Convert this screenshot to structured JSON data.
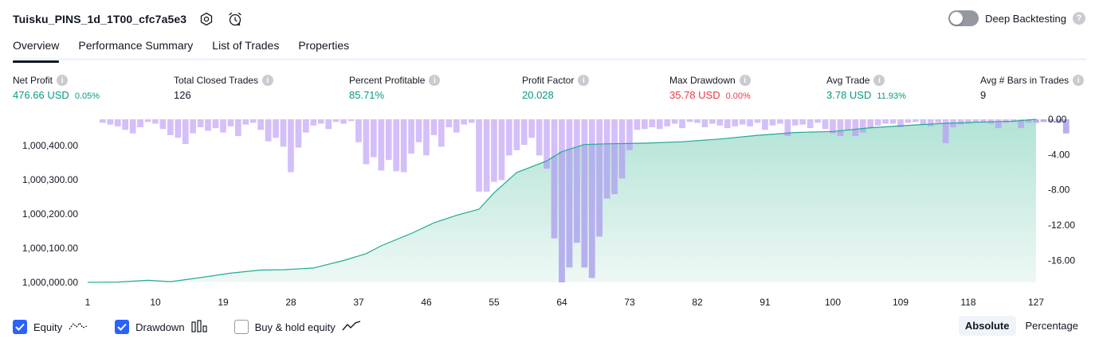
{
  "header": {
    "strategy_name": "Tuisku_PINS_1d_1T00_cfc7a5e3",
    "icons": [
      "settings-icon",
      "alert-icon"
    ],
    "deep_backtesting_label": "Deep Backtesting",
    "deep_backtesting_enabled": false,
    "help_glyph": "?"
  },
  "tabs": [
    {
      "label": "Overview",
      "active": true
    },
    {
      "label": "Performance Summary",
      "active": false
    },
    {
      "label": "List of Trades",
      "active": false
    },
    {
      "label": "Properties",
      "active": false
    }
  ],
  "metrics": [
    {
      "label": "Net Profit",
      "value": "476.66 USD",
      "sub": "0.05%",
      "tone": "green"
    },
    {
      "label": "Total Closed Trades",
      "value": "126",
      "sub": "",
      "tone": "dark"
    },
    {
      "label": "Percent Profitable",
      "value": "85.71%",
      "sub": "",
      "tone": "green"
    },
    {
      "label": "Profit Factor",
      "value": "20.028",
      "sub": "",
      "tone": "green"
    },
    {
      "label": "Max Drawdown",
      "value": "35.78 USD",
      "sub": "0.00%",
      "tone": "red"
    },
    {
      "label": "Avg Trade",
      "value": "3.78 USD",
      "sub": "11.93%",
      "tone": "green"
    },
    {
      "label": "Avg # Bars in Trades",
      "value": "9",
      "sub": "",
      "tone": "dark"
    }
  ],
  "info_glyph": "i",
  "colors": {
    "green": "#089981",
    "red": "#f23645",
    "drawdown_bar": "#d4bff9",
    "drawdown_bar_overlap": "#b6b1ed",
    "equity_line": "#22ab94",
    "equity_fill_top": "#b2e3d6",
    "equity_fill_bottom": "#eef8f5",
    "checkbox_accent": "#2962ff"
  },
  "legend": [
    {
      "label": "Equity",
      "checked": true,
      "icon": "equity-line-icon"
    },
    {
      "label": "Drawdown",
      "checked": true,
      "icon": "drawdown-bars-icon"
    },
    {
      "label": "Buy & hold equity",
      "checked": false,
      "icon": "buy-hold-line-icon"
    }
  ],
  "modes": [
    {
      "label": "Absolute",
      "active": true
    },
    {
      "label": "Percentage",
      "active": false
    }
  ],
  "chart_data": {
    "type": "area",
    "x_label": "Trade #",
    "x_ticks": [
      1,
      10,
      19,
      28,
      37,
      46,
      55,
      64,
      73,
      82,
      91,
      100,
      109,
      118,
      127
    ],
    "left_axis": {
      "ticks": [
        "1,000,000.00",
        "1,000,100.00",
        "1,000,200.00",
        "1,000,300.00",
        "1,000,400.00"
      ],
      "range": [
        1000000,
        1000476.66
      ]
    },
    "right_axis": {
      "ticks": [
        "0.00",
        "-4.00",
        "-8.00",
        "-12.00",
        "-16.00"
      ],
      "range": [
        -18.5,
        0
      ]
    },
    "series": [
      {
        "name": "Equity",
        "axis": "left",
        "points": [
          [
            1,
            1000000
          ],
          [
            5,
            1000001
          ],
          [
            9,
            1000006
          ],
          [
            12,
            1000002
          ],
          [
            16,
            1000014
          ],
          [
            20,
            1000027
          ],
          [
            24,
            1000036
          ],
          [
            27,
            1000037
          ],
          [
            31,
            1000042
          ],
          [
            35,
            1000064
          ],
          [
            38,
            1000084
          ],
          [
            40,
            1000107
          ],
          [
            44,
            1000143
          ],
          [
            47,
            1000174
          ],
          [
            50,
            1000196
          ],
          [
            53,
            1000214
          ],
          [
            55,
            1000262
          ],
          [
            58,
            1000321
          ],
          [
            62,
            1000355
          ],
          [
            64,
            1000382
          ],
          [
            67,
            1000403
          ],
          [
            70,
            1000405
          ],
          [
            75,
            1000407
          ],
          [
            80,
            1000411
          ],
          [
            85,
            1000419
          ],
          [
            90,
            1000430
          ],
          [
            95,
            1000438
          ],
          [
            100,
            1000441
          ],
          [
            105,
            1000452
          ],
          [
            110,
            1000459
          ],
          [
            115,
            1000465
          ],
          [
            120,
            1000469
          ],
          [
            124,
            1000471
          ],
          [
            127,
            1000476.66
          ]
        ]
      },
      {
        "name": "Drawdown",
        "axis": "right",
        "values": [
          0,
          0,
          -0.4,
          -0.6,
          -0.8,
          -1.2,
          -1.6,
          -0.9,
          -0.3,
          -0.5,
          -1.1,
          -1.8,
          -2.1,
          -2.8,
          -1.6,
          -0.9,
          -1.3,
          -1.0,
          -1.5,
          -0.8,
          -1.9,
          -0.6,
          -0.4,
          -1.2,
          -2.5,
          -2.1,
          -3.1,
          -6.0,
          -3.2,
          -1.5,
          -0.7,
          -0.5,
          -1.1,
          -0.3,
          -0.5,
          -0.2,
          -2.6,
          -5.1,
          -4.3,
          -5.8,
          -4.6,
          -5.9,
          -6.0,
          -3.9,
          -2.6,
          -4.1,
          -1.8,
          -3.1,
          -0.9,
          -1.5,
          -0.6,
          -0.4,
          -8.2,
          -8.2,
          -7.1,
          -6.9,
          -4.1,
          -3.5,
          -2.9,
          -2.1,
          -4.1,
          -5.6,
          -13.5,
          -18.5,
          -16.8,
          -14.0,
          -16.8,
          -18.0,
          -13.3,
          -9.0,
          -8.5,
          -6.7,
          -3.5,
          -1.2,
          -1.1,
          -0.9,
          -1.1,
          -0.8,
          -0.5,
          -1.0,
          -0.3,
          -0.4,
          -0.9,
          -0.5,
          -0.7,
          -1.0,
          -0.8,
          -0.6,
          -0.8,
          -0.4,
          -1.2,
          -0.7,
          -0.5,
          -1.9,
          -0.7,
          -0.6,
          -1.0,
          -0.4,
          -1.1,
          -1.6,
          -1.9,
          -1.2,
          -1.9,
          -1.5,
          -1.0,
          -0.7,
          -0.5,
          -0.5,
          -0.9,
          -0.4,
          -0.3,
          -0.6,
          -0.8,
          -0.4,
          -2.7,
          -0.9,
          -0.6,
          -0.5,
          -0.4,
          -0.4,
          -0.5,
          -1.0,
          -0.4,
          -0.3,
          -1.0,
          -0.4,
          -0.4,
          -0.3,
          -0.3,
          -0.4,
          -1.6
        ]
      }
    ]
  }
}
